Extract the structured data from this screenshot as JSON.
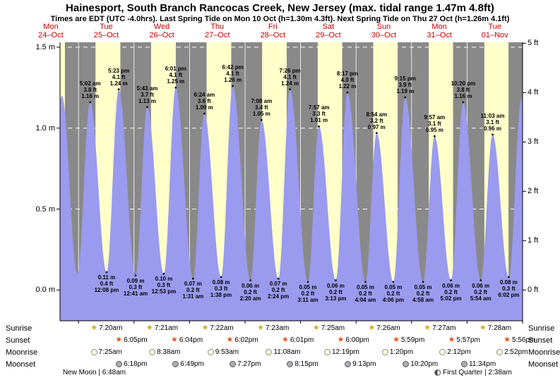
{
  "header": {
    "title": "Hainesport, South Branch Rancocas Creek, New Jersey (max. tidal range 1.47m 4.8ft)",
    "subtitle": "Times are EDT (UTC -4.0hrs). Last Spring Tide on Mon 10 Oct (h=1.30m 4.3ft). Next Spring Tide on Thu 27 Oct (h=1.26m 4.1ft)"
  },
  "chart_data": {
    "type": "area",
    "title": "Tide height curve",
    "x_axis": {
      "unit": "hours since Mon 24-Oct 00:00",
      "start": 16.0,
      "end": 216.0,
      "midnights": [
        24,
        48,
        72,
        96,
        120,
        144,
        168,
        192,
        216
      ]
    },
    "y_axis": {
      "min_m": -0.19,
      "max_m": 1.53,
      "left_ticks": [
        {
          "label": "1.5 m",
          "m": 1.5
        },
        {
          "label": "1.0 m",
          "m": 1.0
        },
        {
          "label": "0.5 m",
          "m": 0.5
        },
        {
          "label": "0.0 m",
          "m": 0.0
        }
      ],
      "right_ticks": [
        {
          "label": "5 ft",
          "m": 1.524
        },
        {
          "label": "4 ft",
          "m": 1.2192
        },
        {
          "label": "3 ft",
          "m": 0.9144
        },
        {
          "label": "2 ft",
          "m": 0.6096
        },
        {
          "label": "1 ft",
          "m": 0.3048
        },
        {
          "label": "0 ft",
          "m": 0.0
        }
      ]
    },
    "day_labels": [
      {
        "day": "Mon",
        "date": "24–Oct",
        "noon_hour": 12
      },
      {
        "day": "Tue",
        "date": "25–Oct",
        "noon_hour": 36
      },
      {
        "day": "Wed",
        "date": "26–Oct",
        "noon_hour": 60
      },
      {
        "day": "Thu",
        "date": "27–Oct",
        "noon_hour": 84
      },
      {
        "day": "Fri",
        "date": "28–Oct",
        "noon_hour": 108
      },
      {
        "day": "Sat",
        "date": "29–Oct",
        "noon_hour": 132
      },
      {
        "day": "Sun",
        "date": "30–Oct",
        "noon_hour": 156
      },
      {
        "day": "Mon",
        "date": "31–Oct",
        "noon_hour": 180
      },
      {
        "day": "Tue",
        "date": "01–Nov",
        "noon_hour": 204
      }
    ],
    "daylight_bands": [
      [
        15.0,
        18.12
      ],
      [
        31.33,
        42.08
      ],
      [
        55.35,
        66.07
      ],
      [
        79.37,
        90.03
      ],
      [
        103.38,
        114.02
      ],
      [
        127.42,
        138.0
      ],
      [
        151.43,
        161.98
      ],
      [
        175.45,
        185.95
      ],
      [
        199.47,
        209.93
      ]
    ],
    "tide_extremes": [
      {
        "hour": 10.5,
        "m": 0.12,
        "type": "low"
      },
      {
        "hour": 16.75,
        "m": 1.2,
        "type": "high"
      },
      {
        "hour": 23.5,
        "m": 0.1,
        "type": "low"
      },
      {
        "hour": 29.03,
        "m": 1.16,
        "type": "high",
        "lines": [
          "5:02 am",
          "3.8 ft",
          "1.16 m"
        ]
      },
      {
        "hour": 36.13,
        "m": 0.11,
        "type": "low",
        "lines": [
          "0.11 m",
          "0.4 ft",
          "12:08 pm"
        ]
      },
      {
        "hour": 41.38,
        "m": 1.24,
        "type": "high",
        "lines": [
          "5:23 pm",
          "4.1 ft",
          "1.24 m"
        ]
      },
      {
        "hour": 48.68,
        "m": 0.09,
        "type": "low",
        "lines": [
          "0.09 m",
          "0.3 ft",
          "12:41 am"
        ]
      },
      {
        "hour": 53.72,
        "m": 1.13,
        "type": "high",
        "lines": [
          "5:43 am",
          "3.7 ft",
          "1.13 m"
        ]
      },
      {
        "hour": 60.88,
        "m": 0.1,
        "type": "low",
        "lines": [
          "0.10 m",
          "0.3 ft",
          "12:53 pm"
        ]
      },
      {
        "hour": 66.02,
        "m": 1.25,
        "type": "high",
        "lines": [
          "6:01 pm",
          "4.1 ft",
          "1.25 m"
        ]
      },
      {
        "hour": 73.52,
        "m": 0.07,
        "type": "low",
        "lines": [
          "0.07 m",
          "0.2 ft",
          "1:31 am"
        ]
      },
      {
        "hour": 78.4,
        "m": 1.09,
        "type": "high",
        "lines": [
          "6:24 am",
          "3.6 ft",
          "1.09 m"
        ]
      },
      {
        "hour": 85.63,
        "m": 0.08,
        "type": "low",
        "lines": [
          "0.08 m",
          "0.3 ft",
          "1:38 pm"
        ]
      },
      {
        "hour": 90.7,
        "m": 1.26,
        "type": "high",
        "lines": [
          "6:42 pm",
          "4.1 ft",
          "1.26 m"
        ]
      },
      {
        "hour": 98.33,
        "m": 0.06,
        "type": "low",
        "lines": [
          "0.06 m",
          "0.2 ft",
          "2:20 am"
        ]
      },
      {
        "hour": 103.13,
        "m": 1.05,
        "type": "high",
        "lines": [
          "7:08 am",
          "3.4 ft",
          "1.05 m"
        ]
      },
      {
        "hour": 110.4,
        "m": 0.07,
        "type": "low",
        "lines": [
          "0.07 m",
          "0.2 ft",
          "2:24 pm"
        ]
      },
      {
        "hour": 115.43,
        "m": 1.24,
        "type": "high",
        "lines": [
          "7:26 pm",
          "4.1 ft",
          "1.24 m"
        ]
      },
      {
        "hour": 123.18,
        "m": 0.05,
        "type": "low",
        "lines": [
          "0.05 m",
          "0.2 ft",
          "3:11 am"
        ]
      },
      {
        "hour": 127.95,
        "m": 1.01,
        "type": "high",
        "lines": [
          "7:57 am",
          "3.3 ft",
          "1.01 m"
        ]
      },
      {
        "hour": 135.22,
        "m": 0.06,
        "type": "low",
        "lines": [
          "0.06 m",
          "0.2 ft",
          "3:13 pm"
        ]
      },
      {
        "hour": 140.28,
        "m": 1.22,
        "type": "high",
        "lines": [
          "8:17 pm",
          "4.0 ft",
          "1.22 m"
        ]
      },
      {
        "hour": 148.07,
        "m": 0.05,
        "type": "low",
        "lines": [
          "0.05 m",
          "0.2 ft",
          "4:04 am"
        ]
      },
      {
        "hour": 152.9,
        "m": 0.97,
        "type": "high",
        "lines": [
          "8:54 am",
          "3.2 ft",
          "0.97 m"
        ]
      },
      {
        "hour": 160.1,
        "m": 0.05,
        "type": "low",
        "lines": [
          "0.05 m",
          "0.2 ft",
          "4:06 pm"
        ]
      },
      {
        "hour": 165.25,
        "m": 1.19,
        "type": "high",
        "lines": [
          "9:15 pm",
          "3.9 ft",
          "1.19 m"
        ]
      },
      {
        "hour": 172.97,
        "m": 0.05,
        "type": "low",
        "lines": [
          "0.05 m",
          "0.2 ft",
          "4:58 am"
        ]
      },
      {
        "hour": 177.95,
        "m": 0.95,
        "type": "high",
        "lines": [
          "9:57 am",
          "3.1 ft",
          "0.95 m"
        ]
      },
      {
        "hour": 185.03,
        "m": 0.06,
        "type": "low",
        "lines": [
          "0.06 m",
          "0.2 ft",
          "5:02 pm"
        ]
      },
      {
        "hour": 190.33,
        "m": 1.16,
        "type": "high",
        "lines": [
          "10:20 pm",
          "3.8 ft",
          "1.16 m"
        ]
      },
      {
        "hour": 197.9,
        "m": 0.06,
        "type": "low",
        "lines": [
          "0.06 m",
          "0.2 ft",
          "5:54 am"
        ]
      },
      {
        "hour": 203.05,
        "m": 0.96,
        "type": "high",
        "lines": [
          "11:03 am",
          "3.1 ft",
          "0.96 m"
        ]
      },
      {
        "hour": 210.03,
        "m": 0.08,
        "type": "low",
        "lines": [
          "0.08 m",
          "0.3 ft",
          "6:02 pm"
        ]
      },
      {
        "hour": 215.5,
        "m": 1.18,
        "type": "high"
      },
      {
        "hour": 221.8,
        "m": 0.1,
        "type": "low"
      }
    ],
    "colors": {
      "plot_bg": "#898989",
      "daylight": "#ffffca",
      "tide_fill": "#9a9aef",
      "grid": "#ffffff",
      "day_label": "#c80000",
      "annotation": "#000000"
    }
  },
  "astro": {
    "rows": [
      {
        "label": "Sunrise",
        "icon": "sunrise-star",
        "events": [
          {
            "hour": 31.33,
            "time": "7:20am"
          },
          {
            "hour": 55.35,
            "time": "7:21am"
          },
          {
            "hour": 79.37,
            "time": "7:22am"
          },
          {
            "hour": 103.38,
            "time": "7:23am"
          },
          {
            "hour": 127.42,
            "time": "7:25am"
          },
          {
            "hour": 151.43,
            "time": "7:26am"
          },
          {
            "hour": 175.45,
            "time": "7:27am"
          },
          {
            "hour": 199.47,
            "time": "7:28am"
          }
        ]
      },
      {
        "label": "Sunset",
        "icon": "sunset-star",
        "events": [
          {
            "hour": 42.08,
            "time": "6:05pm"
          },
          {
            "hour": 66.07,
            "time": "6:04pm"
          },
          {
            "hour": 90.03,
            "time": "6:02pm"
          },
          {
            "hour": 114.02,
            "time": "6:01pm"
          },
          {
            "hour": 138.0,
            "time": "6:00pm"
          },
          {
            "hour": 161.98,
            "time": "5:59pm"
          },
          {
            "hour": 185.95,
            "time": "5:57pm"
          },
          {
            "hour": 209.93,
            "time": "5:56pm"
          }
        ]
      },
      {
        "label": "Moonrise",
        "icon": "moonrise-disc",
        "events": [
          {
            "hour": 31.42,
            "time": "7:25am"
          },
          {
            "hour": 56.63,
            "time": "8:38am"
          },
          {
            "hour": 81.88,
            "time": "9:53am"
          },
          {
            "hour": 107.13,
            "time": "11:08am"
          },
          {
            "hour": 132.32,
            "time": "12:19pm"
          },
          {
            "hour": 157.33,
            "time": "1:20pm"
          },
          {
            "hour": 182.2,
            "time": "2:12pm"
          },
          {
            "hour": 206.87,
            "time": "2:52pm"
          }
        ]
      },
      {
        "label": "Moonset",
        "icon": "moonset-disc",
        "events": [
          {
            "hour": 42.3,
            "time": "6:18pm"
          },
          {
            "hour": 66.82,
            "time": "6:49pm"
          },
          {
            "hour": 91.45,
            "time": "7:27pm"
          },
          {
            "hour": 116.25,
            "time": "8:15pm"
          },
          {
            "hour": 141.22,
            "time": "9:13pm"
          },
          {
            "hour": 166.33,
            "time": "10:20pm"
          },
          {
            "hour": 191.57,
            "time": "11:34pm"
          }
        ]
      }
    ],
    "phases": [
      {
        "label": "New Moon | 6:48am",
        "hour": 30.8,
        "icon": null
      },
      {
        "label": "First Quarter | 2:38am",
        "hour": 194.63,
        "icon": "firstquarter-disc"
      }
    ]
  }
}
